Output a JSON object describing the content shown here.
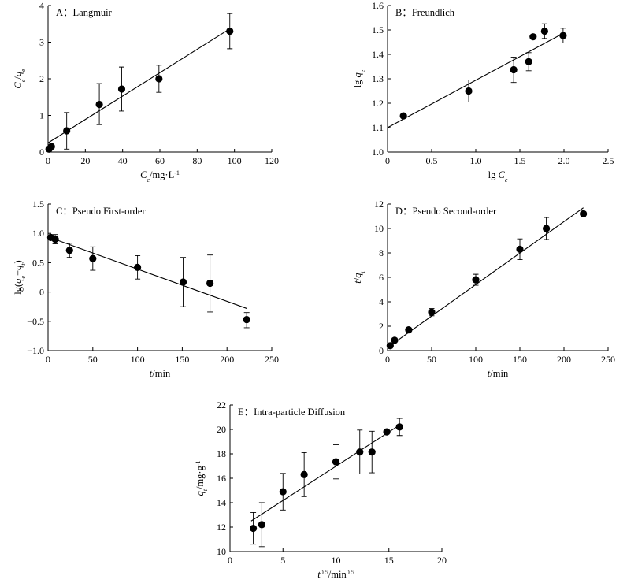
{
  "chart_data": [
    {
      "id": "A",
      "type": "scatter",
      "title": "A：Langmuir",
      "xlabel_html": "<tspan font-style='italic'>C</tspan><tspan font-style='italic' font-size='8' baseline-shift='sub'>e</tspan><tspan>/mg·L</tspan><tspan font-size='8' baseline-shift='super'>-1</tspan>",
      "ylabel_html": "<tspan font-style='italic'>C</tspan><tspan font-style='italic' font-size='8' baseline-shift='sub'>e</tspan><tspan>/</tspan><tspan font-style='italic'>q</tspan><tspan font-style='italic' font-size='8' baseline-shift='sub'>e</tspan>",
      "xlim": [
        0,
        120
      ],
      "ylim": [
        0,
        4
      ],
      "xticks": [
        0,
        20,
        40,
        60,
        80,
        100,
        120
      ],
      "yticks": [
        0,
        1,
        2,
        3,
        4
      ],
      "points": [
        {
          "x": 0.5,
          "y": 0.08
        },
        {
          "x": 1.8,
          "y": 0.15
        },
        {
          "x": 10,
          "y": 0.58,
          "err": [
            0.5,
            0.5
          ]
        },
        {
          "x": 27.5,
          "y": 1.3,
          "err": [
            0.55,
            0.57
          ]
        },
        {
          "x": 39.5,
          "y": 1.72,
          "err": [
            0.6,
            0.6
          ]
        },
        {
          "x": 59.5,
          "y": 2.0,
          "err": [
            0.37,
            0.37
          ]
        },
        {
          "x": 97.5,
          "y": 3.3,
          "err": [
            0.48,
            0.48
          ]
        }
      ],
      "fit": [
        [
          0,
          0.25
        ],
        [
          98,
          3.38
        ]
      ]
    },
    {
      "id": "B",
      "type": "scatter",
      "title": "B：Freundlich",
      "xlabel_html": "<tspan>lg </tspan><tspan font-style='italic'>C</tspan><tspan font-style='italic' font-size='8' baseline-shift='sub'>e</tspan>",
      "ylabel_html": "<tspan>lg </tspan><tspan font-style='italic'>q</tspan><tspan font-style='italic' font-size='8' baseline-shift='sub'>e</tspan>",
      "xlim": [
        0,
        2.5
      ],
      "ylim": [
        1.0,
        1.6
      ],
      "xticks": [
        0,
        0.5,
        1.0,
        1.5,
        2.0,
        2.5
      ],
      "xtick_labels": [
        "0",
        "0.5",
        "1.0",
        "1.5",
        "2.0",
        "2.5"
      ],
      "yticks": [
        1.0,
        1.1,
        1.2,
        1.3,
        1.4,
        1.5,
        1.6
      ],
      "ytick_labels": [
        "1.0",
        "1.1",
        "1.2",
        "1.3",
        "1.4",
        "1.5",
        "1.6"
      ],
      "points": [
        {
          "x": 0.18,
          "y": 1.148
        },
        {
          "x": 0.92,
          "y": 1.25,
          "err": [
            0.045,
            0.045
          ]
        },
        {
          "x": 1.43,
          "y": 1.337,
          "err": [
            0.052,
            0.052
          ]
        },
        {
          "x": 1.6,
          "y": 1.37,
          "err": [
            0.037,
            0.037
          ]
        },
        {
          "x": 1.65,
          "y": 1.472
        },
        {
          "x": 1.78,
          "y": 1.495,
          "err": [
            0.03,
            0.03
          ]
        },
        {
          "x": 1.99,
          "y": 1.477,
          "err": [
            0.03,
            0.03
          ]
        }
      ],
      "fit": [
        [
          0,
          1.1
        ],
        [
          2.0,
          1.488
        ]
      ]
    },
    {
      "id": "C",
      "type": "scatter",
      "title": "C：Pseudo First-order",
      "xlabel_html": "<tspan font-style='italic'>t</tspan><tspan>/min</tspan>",
      "ylabel_html": "<tspan>lg(</tspan><tspan font-style='italic'>q</tspan><tspan font-style='italic' font-size='8' baseline-shift='sub'>e</tspan><tspan>−</tspan><tspan font-style='italic'>q</tspan><tspan font-style='italic' font-size='8' baseline-shift='sub'>t</tspan><tspan>)</tspan>",
      "xlim": [
        0,
        250
      ],
      "ylim": [
        -1.0,
        1.5
      ],
      "xticks": [
        0,
        50,
        100,
        150,
        200,
        250
      ],
      "yticks": [
        -1.0,
        -0.5,
        0,
        0.5,
        1.0,
        1.5
      ],
      "ytick_labels": [
        "−1.0",
        "−0.5",
        "0",
        "0.5",
        "1.0",
        "1.5"
      ],
      "points": [
        {
          "x": 3,
          "y": 0.93
        },
        {
          "x": 8,
          "y": 0.9,
          "err": [
            0.08,
            0.08
          ]
        },
        {
          "x": 24,
          "y": 0.71,
          "err": [
            0.12,
            0.12
          ]
        },
        {
          "x": 50,
          "y": 0.57,
          "err": [
            0.2,
            0.2
          ]
        },
        {
          "x": 100,
          "y": 0.42,
          "err": [
            0.2,
            0.2
          ]
        },
        {
          "x": 151,
          "y": 0.17,
          "err": [
            0.42,
            0.42
          ]
        },
        {
          "x": 181,
          "y": 0.15,
          "err": [
            0.49,
            0.48
          ]
        },
        {
          "x": 222,
          "y": -0.47,
          "err": [
            0.14,
            0.12
          ]
        }
      ],
      "fit": [
        [
          0,
          0.94
        ],
        [
          222,
          -0.28
        ]
      ]
    },
    {
      "id": "D",
      "type": "scatter",
      "title": "D：Pseudo Second-order",
      "xlabel_html": "<tspan font-style='italic'>t</tspan><tspan>/min</tspan>",
      "ylabel_html": "<tspan font-style='italic'>t</tspan><tspan>/</tspan><tspan font-style='italic'>q</tspan><tspan font-style='italic' font-size='8' baseline-shift='sub'>t</tspan>",
      "xlim": [
        0,
        250
      ],
      "ylim": [
        0,
        12
      ],
      "xticks": [
        0,
        50,
        100,
        150,
        200,
        250
      ],
      "yticks": [
        0,
        2,
        4,
        6,
        8,
        10,
        12
      ],
      "points": [
        {
          "x": 3,
          "y": 0.4
        },
        {
          "x": 8,
          "y": 0.85
        },
        {
          "x": 24,
          "y": 1.7
        },
        {
          "x": 50,
          "y": 3.15,
          "err": [
            0.3,
            0.3
          ]
        },
        {
          "x": 100,
          "y": 5.8,
          "err": [
            0.45,
            0.45
          ]
        },
        {
          "x": 150,
          "y": 8.3,
          "err": [
            0.85,
            0.85
          ]
        },
        {
          "x": 180,
          "y": 10.0,
          "err": [
            0.9,
            0.9
          ]
        },
        {
          "x": 222,
          "y": 11.2
        }
      ],
      "fit": [
        [
          0,
          0.25
        ],
        [
          222,
          11.7
        ]
      ]
    },
    {
      "id": "E",
      "type": "scatter",
      "title": "E：Intra-particle Diffusion",
      "xlabel_html": "<tspan font-style='italic'>t</tspan><tspan font-size='8' baseline-shift='super'>0.5</tspan><tspan>/min</tspan><tspan font-size='8' baseline-shift='super'>0.5</tspan>",
      "ylabel_html": "<tspan font-style='italic'>q</tspan><tspan font-style='italic' font-size='8' baseline-shift='sub'>t</tspan><tspan>/mg·g</tspan><tspan font-size='8' baseline-shift='super'>-1</tspan>",
      "xlim": [
        0,
        20
      ],
      "ylim": [
        10,
        22
      ],
      "xticks": [
        0,
        5,
        10,
        15,
        20
      ],
      "yticks": [
        10,
        12,
        14,
        16,
        18,
        20,
        22
      ],
      "points": [
        {
          "x": 2.2,
          "y": 11.9,
          "err": [
            1.3,
            1.3
          ]
        },
        {
          "x": 3.0,
          "y": 12.2,
          "err": [
            1.8,
            1.8
          ]
        },
        {
          "x": 5.0,
          "y": 14.9,
          "err": [
            1.5,
            1.5
          ]
        },
        {
          "x": 7.0,
          "y": 16.3,
          "err": [
            1.8,
            1.8
          ]
        },
        {
          "x": 10.0,
          "y": 17.35,
          "err": [
            1.4,
            1.4
          ]
        },
        {
          "x": 12.25,
          "y": 18.15,
          "err": [
            1.8,
            1.8
          ]
        },
        {
          "x": 13.4,
          "y": 18.15,
          "err": [
            1.7,
            1.7
          ]
        },
        {
          "x": 14.8,
          "y": 19.8
        },
        {
          "x": 16.0,
          "y": 20.2,
          "err": [
            0.7,
            0.7
          ]
        }
      ],
      "fit": [
        [
          2.0,
          12.5
        ],
        [
          16.0,
          20.35
        ]
      ]
    }
  ]
}
